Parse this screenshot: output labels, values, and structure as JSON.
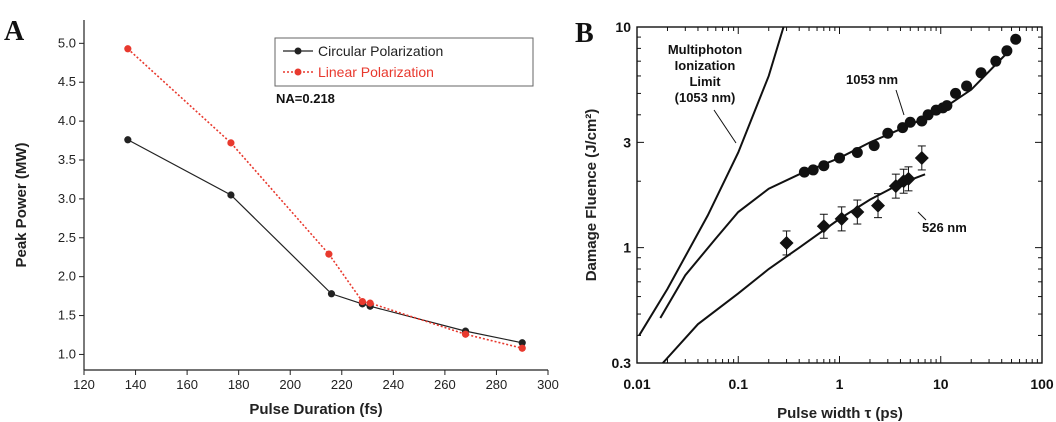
{
  "chart_data": [
    {
      "type": "line",
      "panel_label": "A",
      "xlabel": "Pulse Duration (fs)",
      "ylabel": "Peak Power (MW)",
      "xlim": [
        120,
        300
      ],
      "ylim": [
        0.8,
        5.3
      ],
      "xticks": [
        "120",
        "140",
        "160",
        "180",
        "200",
        "220",
        "240",
        "260",
        "280",
        "300"
      ],
      "yticks": [
        "1.0",
        "1.5",
        "2.0",
        "2.5",
        "3.0",
        "3.5",
        "4.0",
        "4.5",
        "5.0"
      ],
      "annotation": "NA=0.218",
      "legend_position": "top-right",
      "series": [
        {
          "name": "Circular Polarization",
          "color": "#222222",
          "style": "solid",
          "x": [
            137,
            177,
            216,
            228,
            231,
            268,
            290
          ],
          "y": [
            3.76,
            3.05,
            1.78,
            1.65,
            1.62,
            1.3,
            1.15
          ]
        },
        {
          "name": "Linear Polarization",
          "color": "#e8392e",
          "style": "dotted",
          "x": [
            137,
            177,
            215,
            228,
            231,
            268,
            290
          ],
          "y": [
            4.93,
            3.72,
            2.29,
            1.68,
            1.66,
            1.26,
            1.08
          ]
        }
      ]
    },
    {
      "type": "scatter",
      "panel_label": "B",
      "xlabel": "Pulse width τ (ps)",
      "ylabel": "Damage Fluence (J/cm²)",
      "xscale": "log",
      "yscale": "log",
      "xlim": [
        0.01,
        100
      ],
      "ylim": [
        0.3,
        10
      ],
      "xticks": [
        "0.01",
        "0.1",
        "1",
        "10",
        "100"
      ],
      "yticks": [
        "0.3",
        "1",
        "3",
        "10"
      ],
      "annotations": [
        "Multiphoton",
        "Ionization",
        "Limit",
        "(1053 nm)",
        "1053  nm",
        "526  nm"
      ],
      "series": [
        {
          "name": "1053 nm",
          "marker": "circle",
          "x": [
            0.45,
            0.55,
            0.7,
            1.0,
            1.5,
            2.2,
            3.0,
            4.2,
            5.0,
            6.5,
            7.5,
            9.0,
            10.5,
            11.5,
            14,
            18,
            25,
            35,
            45,
            55
          ],
          "y": [
            2.2,
            2.25,
            2.35,
            2.55,
            2.7,
            2.9,
            3.3,
            3.5,
            3.7,
            3.75,
            4.0,
            4.2,
            4.3,
            4.4,
            5.0,
            5.4,
            6.2,
            7.0,
            7.8,
            8.8
          ]
        },
        {
          "name": "526 nm",
          "marker": "diamond",
          "x": [
            0.3,
            0.7,
            1.05,
            1.5,
            2.4,
            3.6,
            4.3,
            4.8,
            6.5
          ],
          "y": [
            1.05,
            1.25,
            1.35,
            1.45,
            1.55,
            1.9,
            2.0,
            2.05,
            2.55
          ]
        },
        {
          "name": "Multiphoton ionization limit curve",
          "type": "line",
          "x": [
            0.0105,
            0.02,
            0.05,
            0.1,
            0.2,
            0.28
          ],
          "y": [
            0.4,
            0.65,
            1.4,
            2.7,
            6.0,
            10
          ]
        },
        {
          "name": "1053 nm fit curve",
          "type": "line",
          "x": [
            0.017,
            0.03,
            0.06,
            0.1,
            0.2,
            0.4,
            1,
            2,
            5,
            10,
            20,
            50
          ],
          "y": [
            0.48,
            0.75,
            1.1,
            1.45,
            1.85,
            2.15,
            2.55,
            3.0,
            3.6,
            4.2,
            5.2,
            8.0
          ]
        },
        {
          "name": "526 nm fit curve",
          "type": "line",
          "x": [
            0.018,
            0.04,
            0.1,
            0.2,
            0.4,
            1,
            2,
            4,
            7
          ],
          "y": [
            0.3,
            0.45,
            0.62,
            0.8,
            1.0,
            1.35,
            1.65,
            1.95,
            2.15
          ]
        }
      ]
    }
  ]
}
